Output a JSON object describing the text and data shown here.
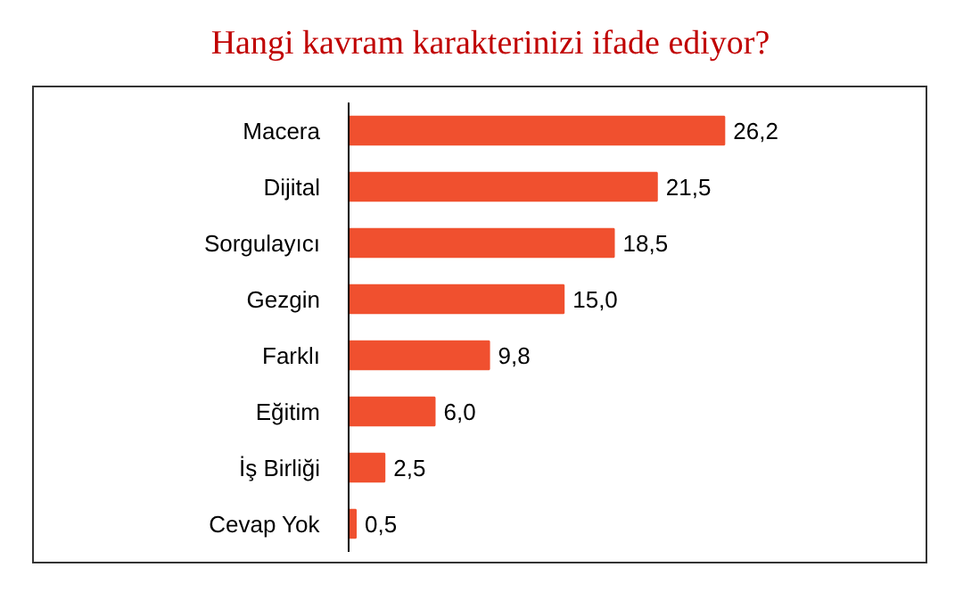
{
  "chart_data": {
    "type": "bar",
    "orientation": "horizontal",
    "title": "Hangi kavram karakterinizi ifade ediyor?",
    "categories": [
      "Macera",
      "Dijital",
      "Sorgulayıcı",
      "Gezgin",
      "Farklı",
      "Eğitim",
      "İş Birliği",
      "Cevap Yok"
    ],
    "values": [
      26.2,
      21.5,
      18.5,
      15.0,
      9.8,
      6.0,
      2.5,
      0.5
    ],
    "value_labels": [
      "26,2",
      "21,5",
      "18,5",
      "15,0",
      "9,8",
      "6,0",
      "2,5",
      "0,5"
    ],
    "color": "#f0502f",
    "grid": false,
    "tick_labels": "y"
  }
}
